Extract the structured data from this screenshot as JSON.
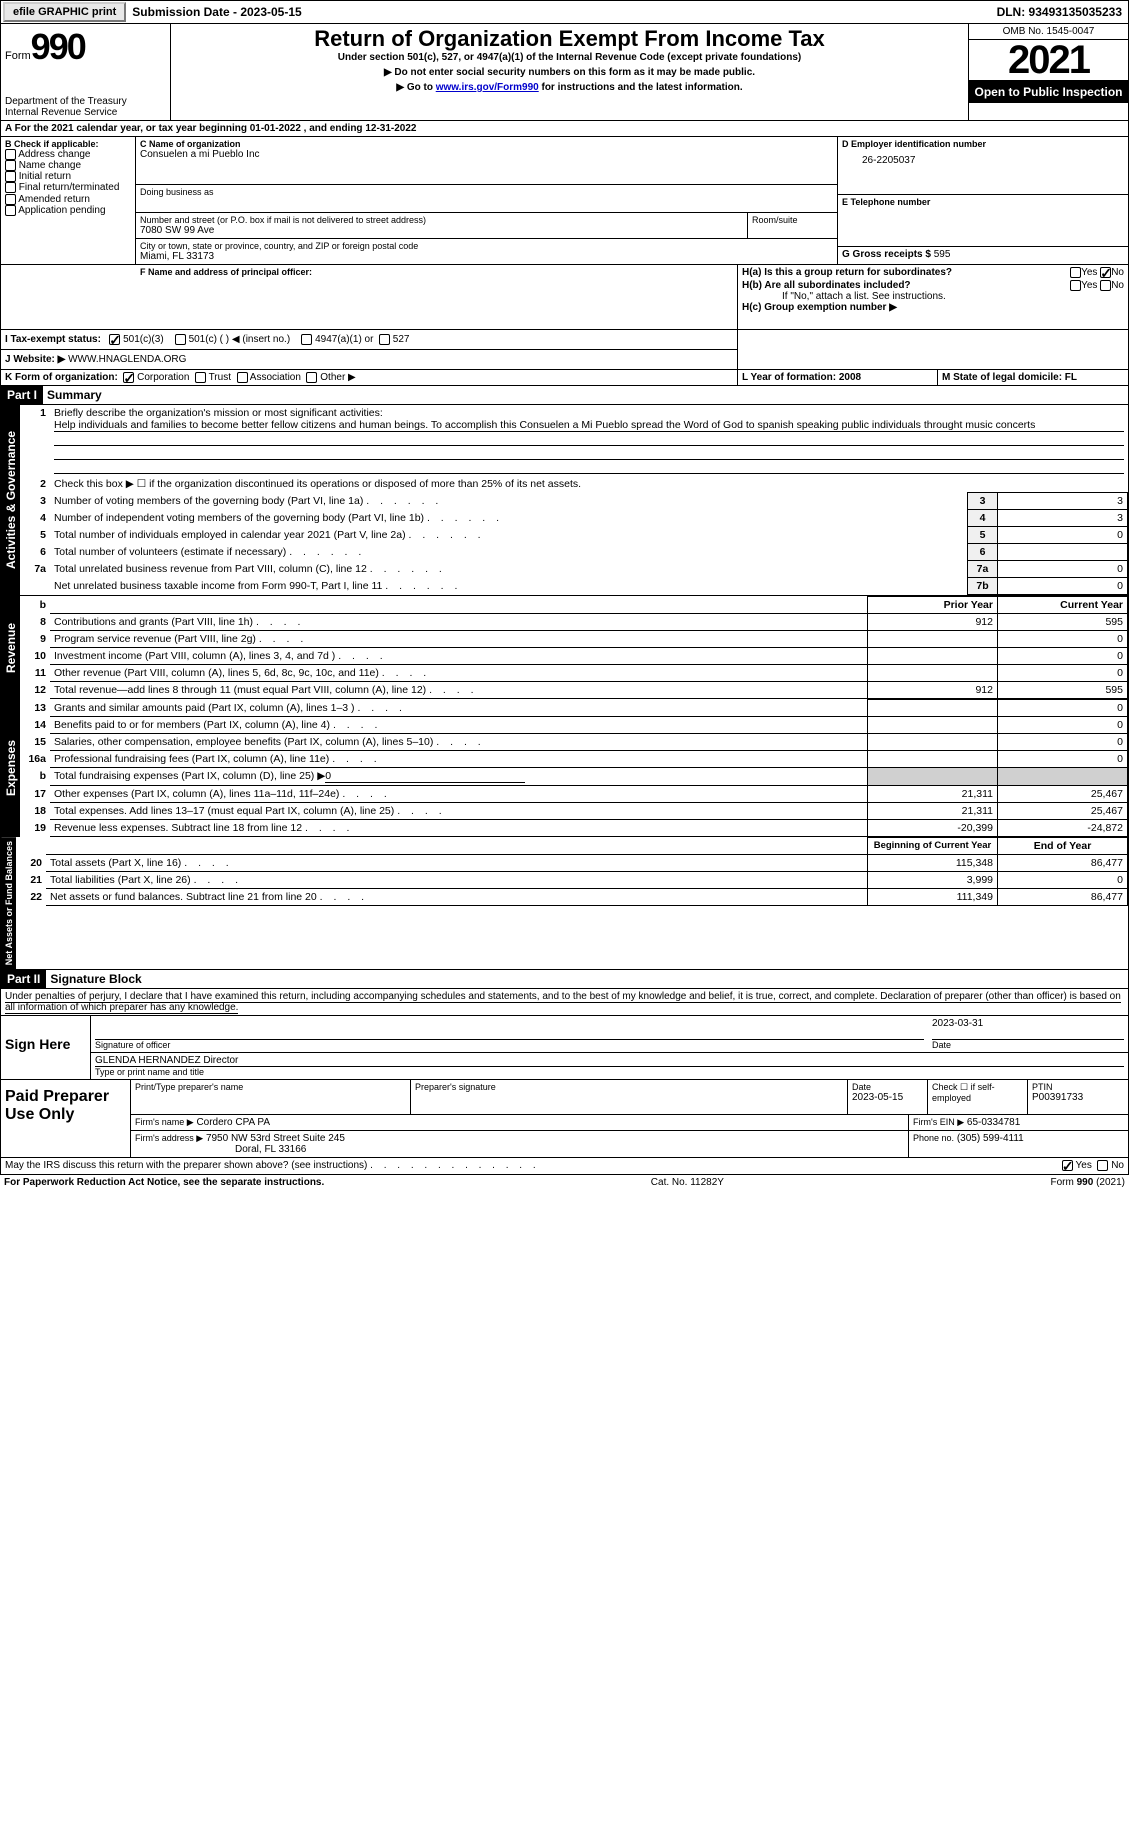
{
  "topbar": {
    "efile_btn": "efile GRAPHIC print",
    "sub_date_label": "Submission Date - 2023-05-15",
    "dln": "DLN: 93493135035233"
  },
  "header": {
    "form_label": "Form",
    "form_num": "990",
    "dept": "Department of the Treasury",
    "irs": "Internal Revenue Service",
    "title": "Return of Organization Exempt From Income Tax",
    "sub1": "Under section 501(c), 527, or 4947(a)(1) of the Internal Revenue Code (except private foundations)",
    "sub2": "▶ Do not enter social security numbers on this form as it may be made public.",
    "sub3_pre": "▶ Go to ",
    "sub3_link": "www.irs.gov/Form990",
    "sub3_post": " for instructions and the latest information.",
    "omb": "OMB No. 1545-0047",
    "year": "2021",
    "inspect": "Open to Public Inspection"
  },
  "period": {
    "text_a": "A For the 2021 calendar year, or tax year beginning 01-01-2022",
    "text_b": ", and ending 12-31-2022"
  },
  "boxB": {
    "label": "B Check if applicable:",
    "opts": [
      "Address change",
      "Name change",
      "Initial return",
      "Final return/terminated",
      "Amended return",
      "Application pending"
    ]
  },
  "boxC": {
    "name_label": "C Name of organization",
    "name": "Consuelen a mi Pueblo Inc",
    "dba_label": "Doing business as",
    "addr_label": "Number and street (or P.O. box if mail is not delivered to street address)",
    "room_label": "Room/suite",
    "addr": "7080 SW 99 Ave",
    "city_label": "City or town, state or province, country, and ZIP or foreign postal code",
    "city": "Miami, FL  33173"
  },
  "boxD": {
    "label": "D Employer identification number",
    "ein": "26-2205037"
  },
  "boxE": {
    "label": "E Telephone number"
  },
  "boxG": {
    "label": "G Gross receipts $",
    "val": "595"
  },
  "boxF": {
    "label": "F Name and address of principal officer:"
  },
  "boxH": {
    "ha": "H(a)  Is this a group return for subordinates?",
    "hb": "H(b)  Are all subordinates included?",
    "hb_note": "If \"No,\" attach a list. See instructions.",
    "hc": "H(c)  Group exemption number ▶",
    "yes": "Yes",
    "no": "No"
  },
  "boxI": {
    "label": "I    Tax-exempt status:",
    "o1": "501(c)(3)",
    "o2": "501(c) (  ) ◀ (insert no.)",
    "o3": "4947(a)(1) or",
    "o4": "527"
  },
  "boxJ": {
    "label": "J   Website: ▶",
    "val": "WWW.HNAGLENDA.ORG"
  },
  "boxK": {
    "label": "K Form of organization:",
    "o1": "Corporation",
    "o2": "Trust",
    "o3": "Association",
    "o4": "Other ▶"
  },
  "boxL": {
    "label": "L Year of formation: 2008"
  },
  "boxM": {
    "label": "M State of legal domicile: FL"
  },
  "part1": {
    "header": "Part I",
    "title": "Summary",
    "line1_label": "Briefly describe the organization's mission or most significant activities:",
    "line1_text": "Help individuals and families to become better fellow citizens and human beings. To accomplish this Consuelen a Mi Pueblo spread the Word of God to spanish speaking public individuals throught music concerts",
    "line2": "Check this box ▶ ☐ if the organization discontinued its operations or disposed of more than 25% of its net assets.",
    "rows_gov": [
      {
        "n": "3",
        "t": "Number of voting members of the governing body (Part VI, line 1a)",
        "ln": "3",
        "v": "3"
      },
      {
        "n": "4",
        "t": "Number of independent voting members of the governing body (Part VI, line 1b)",
        "ln": "4",
        "v": "3"
      },
      {
        "n": "5",
        "t": "Total number of individuals employed in calendar year 2021 (Part V, line 2a)",
        "ln": "5",
        "v": "0"
      },
      {
        "n": "6",
        "t": "Total number of volunteers (estimate if necessary)",
        "ln": "6",
        "v": ""
      },
      {
        "n": "7a",
        "t": "Total unrelated business revenue from Part VIII, column (C), line 12",
        "ln": "7a",
        "v": "0"
      },
      {
        "n": "",
        "t": "Net unrelated business taxable income from Form 990-T, Part I, line 11",
        "ln": "7b",
        "v": "0"
      }
    ],
    "col_prior": "Prior Year",
    "col_current": "Current Year",
    "rows_rev": [
      {
        "n": "8",
        "t": "Contributions and grants (Part VIII, line 1h)",
        "p": "912",
        "c": "595"
      },
      {
        "n": "9",
        "t": "Program service revenue (Part VIII, line 2g)",
        "p": "",
        "c": "0"
      },
      {
        "n": "10",
        "t": "Investment income (Part VIII, column (A), lines 3, 4, and 7d )",
        "p": "",
        "c": "0"
      },
      {
        "n": "11",
        "t": "Other revenue (Part VIII, column (A), lines 5, 6d, 8c, 9c, 10c, and 11e)",
        "p": "",
        "c": "0"
      },
      {
        "n": "12",
        "t": "Total revenue—add lines 8 through 11 (must equal Part VIII, column (A), line 12)",
        "p": "912",
        "c": "595"
      }
    ],
    "rows_exp": [
      {
        "n": "13",
        "t": "Grants and similar amounts paid (Part IX, column (A), lines 1–3 )",
        "p": "",
        "c": "0"
      },
      {
        "n": "14",
        "t": "Benefits paid to or for members (Part IX, column (A), line 4)",
        "p": "",
        "c": "0"
      },
      {
        "n": "15",
        "t": "Salaries, other compensation, employee benefits (Part IX, column (A), lines 5–10)",
        "p": "",
        "c": "0"
      },
      {
        "n": "16a",
        "t": "Professional fundraising fees (Part IX, column (A), line 11e)",
        "p": "",
        "c": "0"
      },
      {
        "n": "b",
        "t": "Total fundraising expenses (Part IX, column (D), line 25) ▶0",
        "p": "GRAY",
        "c": "GRAY"
      },
      {
        "n": "17",
        "t": "Other expenses (Part IX, column (A), lines 11a–11d, 11f–24e)",
        "p": "21,311",
        "c": "25,467"
      },
      {
        "n": "18",
        "t": "Total expenses. Add lines 13–17 (must equal Part IX, column (A), line 25)",
        "p": "21,311",
        "c": "25,467"
      },
      {
        "n": "19",
        "t": "Revenue less expenses. Subtract line 18 from line 12",
        "p": "-20,399",
        "c": "-24,872"
      }
    ],
    "col_begin": "Beginning of Current Year",
    "col_end": "End of Year",
    "rows_net": [
      {
        "n": "20",
        "t": "Total assets (Part X, line 16)",
        "p": "115,348",
        "c": "86,477"
      },
      {
        "n": "21",
        "t": "Total liabilities (Part X, line 26)",
        "p": "3,999",
        "c": "0"
      },
      {
        "n": "22",
        "t": "Net assets or fund balances. Subtract line 21 from line 20",
        "p": "111,349",
        "c": "86,477"
      }
    ],
    "tab_gov": "Activities & Governance",
    "tab_rev": "Revenue",
    "tab_exp": "Expenses",
    "tab_net": "Net Assets or Fund Balances"
  },
  "part2": {
    "header": "Part II",
    "title": "Signature Block",
    "decl": "Under penalties of perjury, I declare that I have examined this return, including accompanying schedules and statements, and to the best of my knowledge and belief, it is true, correct, and complete. Declaration of preparer (other than officer) is based on all information of which preparer has any knowledge.",
    "sign_here": "Sign Here",
    "sig_officer": "Signature of officer",
    "sig_date": "Date",
    "officer_date": "2023-03-31",
    "officer_name": "GLENDA HERNANDEZ  Director",
    "type_name": "Type or print name and title",
    "paid_prep": "Paid Preparer Use Only",
    "pp_name_label": "Print/Type preparer's name",
    "pp_sig_label": "Preparer's signature",
    "pp_date_label": "Date",
    "pp_date": "2023-05-15",
    "pp_check_label": "Check ☐ if self-employed",
    "pp_ptin_label": "PTIN",
    "pp_ptin": "P00391733",
    "firm_name_label": "Firm's name    ▶",
    "firm_name": "Cordero CPA PA",
    "firm_ein_label": "Firm's EIN ▶",
    "firm_ein": "65-0334781",
    "firm_addr_label": "Firm's address ▶",
    "firm_addr1": "7950 NW 53rd Street Suite 245",
    "firm_addr2": "Doral, FL  33166",
    "firm_phone_label": "Phone no.",
    "firm_phone": "(305) 599-4111",
    "discuss": "May the IRS discuss this return with the preparer shown above? (see instructions)",
    "yes": "Yes",
    "no": "No"
  },
  "footer": {
    "pra": "For Paperwork Reduction Act Notice, see the separate instructions.",
    "cat": "Cat. No. 11282Y",
    "form": "Form 990 (2021)"
  }
}
